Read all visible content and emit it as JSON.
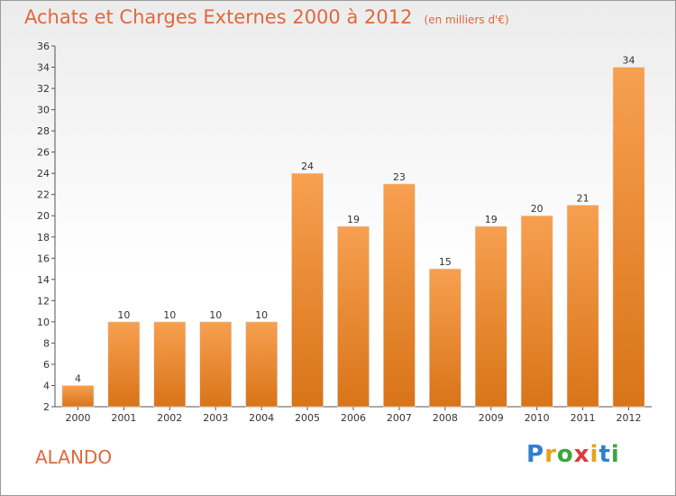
{
  "chart_data": {
    "type": "bar",
    "title": "Achats et Charges Externes 2000 à 2012",
    "unit_note": "(en milliers d'€)",
    "categories": [
      "2000",
      "2001",
      "2002",
      "2003",
      "2004",
      "2005",
      "2006",
      "2007",
      "2008",
      "2009",
      "2010",
      "2011",
      "2012"
    ],
    "values": [
      4,
      10,
      10,
      10,
      10,
      24,
      19,
      23,
      15,
      19,
      20,
      21,
      34
    ],
    "ylim": [
      2,
      36
    ],
    "yticks": [
      2,
      4,
      6,
      8,
      10,
      12,
      14,
      16,
      18,
      20,
      22,
      24,
      26,
      28,
      30,
      32,
      34,
      36
    ],
    "grid": false,
    "bar_color": "#f0902e",
    "xlabel": "",
    "ylabel": ""
  },
  "place_name": "ALANDO",
  "brand": {
    "letters": [
      "P",
      "r",
      "o",
      "x",
      "i",
      "t",
      "i"
    ],
    "colors": [
      "#2f7fcf",
      "#e8a21a",
      "#3aa83a",
      "#e0383c",
      "#e8a21a",
      "#2f7fcf",
      "#3aa83a"
    ]
  },
  "colors": {
    "title": "#e0683c",
    "axis": "#555555"
  }
}
